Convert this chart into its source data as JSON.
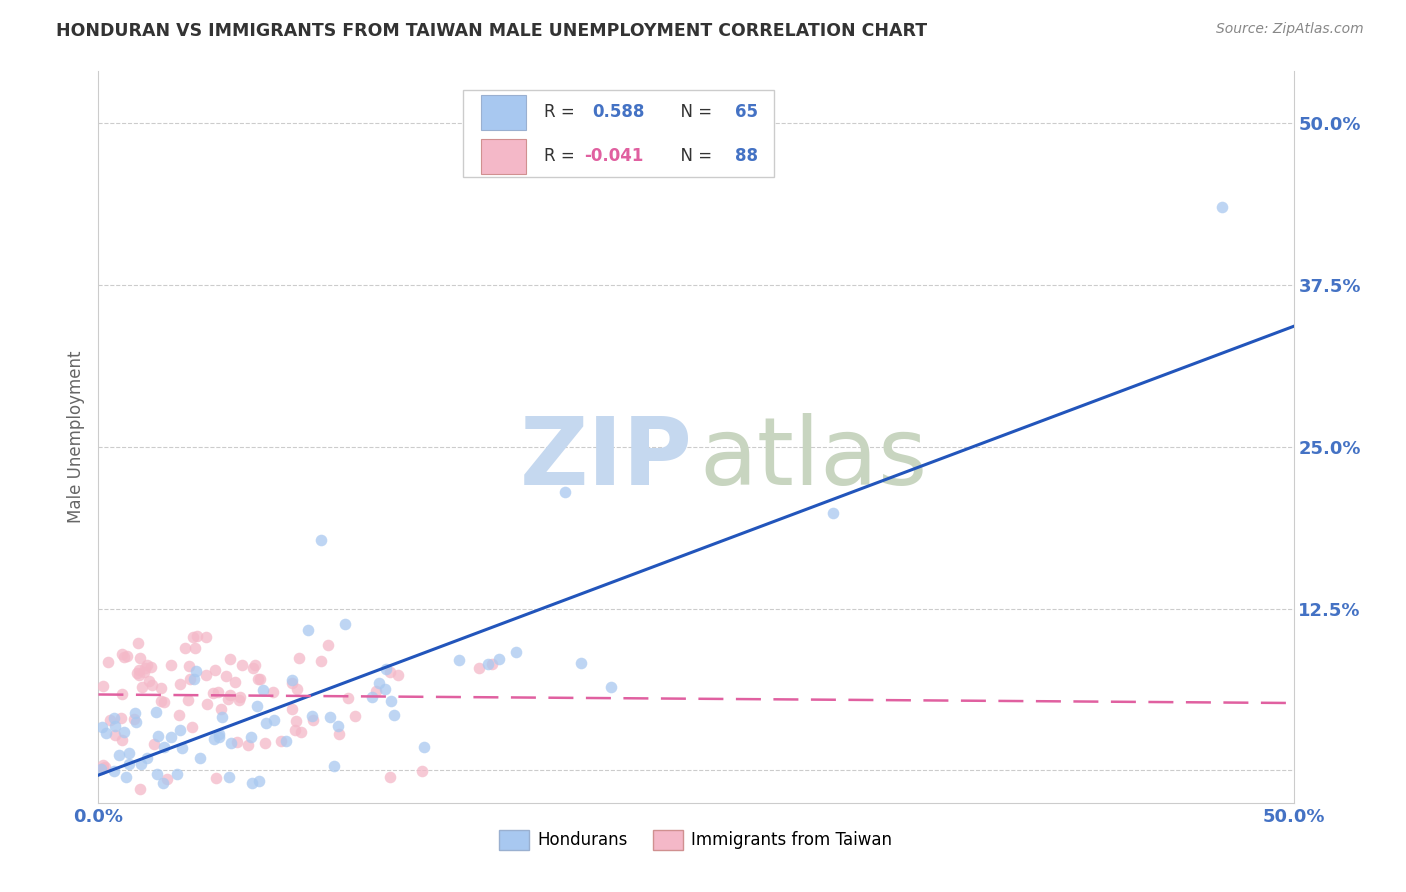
{
  "title": "HONDURAN VS IMMIGRANTS FROM TAIWAN MALE UNEMPLOYMENT CORRELATION CHART",
  "source": "Source: ZipAtlas.com",
  "ylabel": "Male Unemployment",
  "xlim": [
    0.0,
    0.5
  ],
  "ylim": [
    -0.025,
    0.54
  ],
  "legend1_label": "Hondurans",
  "legend2_label": "Immigrants from Taiwan",
  "r1": 0.588,
  "n1": 65,
  "r2": -0.041,
  "n2": 88,
  "blue_color": "#a8c8f0",
  "pink_color": "#f4b8c8",
  "blue_line_color": "#2255bb",
  "pink_line_color": "#e060a0",
  "tick_color": "#4472c4",
  "grid_color": "#cccccc",
  "title_color": "#333333",
  "source_color": "#888888",
  "ylabel_color": "#666666"
}
